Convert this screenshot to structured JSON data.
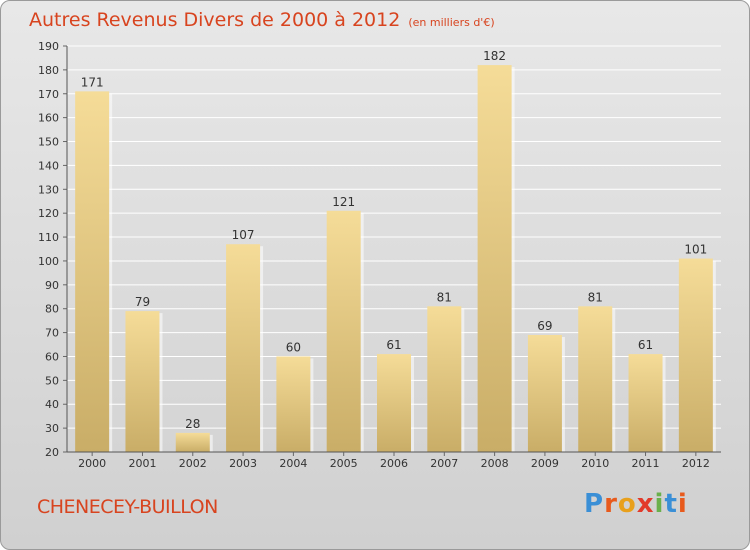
{
  "title": "Autres Revenus Divers de 2000 à 2012",
  "subtitle": "(en milliers d'€)",
  "location": "CHENECEY-BUILLON",
  "logo": {
    "letters": [
      "P",
      "r",
      "o",
      "x",
      "i",
      "t",
      "i"
    ],
    "colors": [
      "#3a8fd6",
      "#e85a1c",
      "#e8a01c",
      "#e23a2a",
      "#6ab04c",
      "#3a8fd6",
      "#e85a1c"
    ]
  },
  "colors": {
    "title": "#d8441f",
    "bar_light": "#f5dc98",
    "bar_dark": "#c9ad67",
    "axis_text": "#333333"
  },
  "chart_data": {
    "type": "bar",
    "categories": [
      "2000",
      "2001",
      "2002",
      "2003",
      "2004",
      "2005",
      "2006",
      "2007",
      "2008",
      "2009",
      "2010",
      "2011",
      "2012"
    ],
    "values": [
      171,
      79,
      28,
      107,
      60,
      121,
      61,
      81,
      182,
      69,
      81,
      61,
      101
    ],
    "title": "Autres Revenus Divers de 2000 à 2012",
    "ylim": [
      20,
      190
    ],
    "yticks": [
      20,
      30,
      40,
      50,
      60,
      70,
      80,
      90,
      100,
      110,
      120,
      130,
      140,
      150,
      160,
      170,
      180,
      190
    ],
    "grid": true
  }
}
